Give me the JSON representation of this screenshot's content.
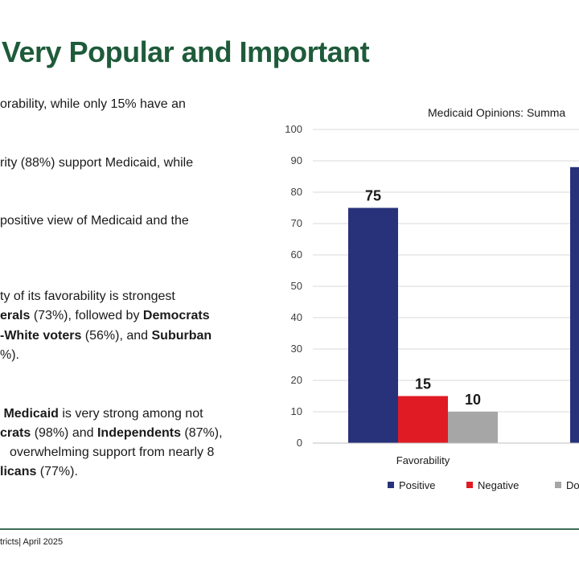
{
  "slide": {
    "title": "Very Popular and Important",
    "footer": "tricts| April 2025"
  },
  "bullets": [
    [
      {
        "t": "orability, while only 15% have an",
        "b": false
      }
    ],
    [
      {
        "t": "rity (88%) support Medicaid, while",
        "b": false
      }
    ],
    [
      {
        "t": "positive view of Medicaid and the",
        "b": false
      }
    ],
    [
      {
        "t": "ty of its favorability is strongest",
        "b": false
      }
    ],
    [
      {
        "t": "erals",
        "b": true
      },
      {
        "t": " (73%), followed by ",
        "b": false
      },
      {
        "t": "Democrats",
        "b": true
      }
    ],
    [
      {
        "t": "-White voters",
        "b": true
      },
      {
        "t": " (56%), and ",
        "b": false
      },
      {
        "t": "Suburban",
        "b": true
      }
    ],
    [
      {
        "t": "%).",
        "b": false
      }
    ],
    [
      {
        "t": " Medicaid",
        "b": true
      },
      {
        "t": " is very strong among not",
        "b": false
      }
    ],
    [
      {
        "t": "crats",
        "b": true
      },
      {
        "t": " (98%) and ",
        "b": false
      },
      {
        "t": "Independents",
        "b": true
      },
      {
        "t": " (87%),",
        "b": false
      }
    ],
    [
      {
        "t": "overwhelming support from nearly 8",
        "b": false
      }
    ],
    [
      {
        "t": "licans",
        "b": true
      },
      {
        "t": " (77%).",
        "b": false
      }
    ]
  ],
  "chart_data": {
    "type": "bar",
    "title": "Medicaid Opinions: Summa",
    "categories": [
      "Favorability",
      ""
    ],
    "ylim": [
      0,
      100
    ],
    "yticks": [
      0,
      10,
      20,
      30,
      40,
      50,
      60,
      70,
      80,
      90,
      100
    ],
    "grid": true,
    "legend_position": "bottom",
    "series": [
      {
        "name": "Positive",
        "color": "#27327a",
        "values": [
          75,
          88
        ],
        "labels": [
          "75",
          ""
        ]
      },
      {
        "name": "Negative",
        "color": "#e01b24",
        "values": [
          15,
          null
        ],
        "labels": [
          "15",
          ""
        ]
      },
      {
        "name": "Do",
        "color": "#a6a6a6",
        "values": [
          10,
          null
        ],
        "labels": [
          "10",
          ""
        ]
      }
    ]
  }
}
